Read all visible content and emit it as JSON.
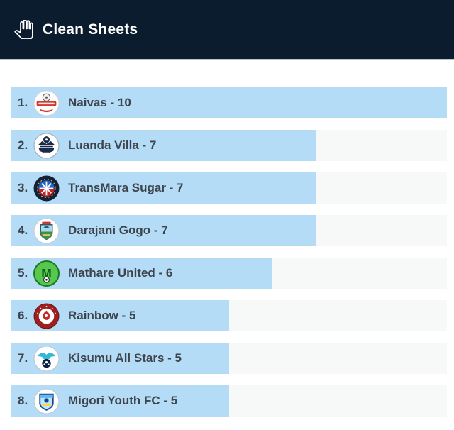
{
  "header": {
    "title": "Clean Sheets",
    "icon": "hand-icon",
    "background_color": "#0b1c2e",
    "text_color": "#ffffff"
  },
  "colors": {
    "bar_fill": "#b5dcf7",
    "bar_track": "#f7f8f8",
    "label_text": "#3d444c"
  },
  "chart_data": {
    "type": "bar",
    "orientation": "horizontal",
    "title": "Clean Sheets",
    "categories": [
      "Naivas",
      "Luanda Villa",
      "TransMara Sugar",
      "Darajani Gogo",
      "Mathare United",
      "Rainbow",
      "Kisumu All Stars",
      "Migori Youth FC"
    ],
    "values": [
      10,
      7,
      7,
      7,
      6,
      5,
      5,
      5
    ],
    "xlim": [
      0,
      10
    ],
    "grid": false,
    "legend": false,
    "bar_color": "#b5dcf7",
    "track_color": "#f7f8f8"
  },
  "rows": [
    {
      "rank": "1.",
      "team": "Naivas",
      "value": 10,
      "label": "Naivas - 10",
      "logo": "naivas-logo"
    },
    {
      "rank": "2.",
      "team": "Luanda Villa",
      "value": 7,
      "label": "Luanda Villa - 7",
      "logo": "luanda-villa-logo"
    },
    {
      "rank": "3.",
      "team": "TransMara Sugar",
      "value": 7,
      "label": "TransMara Sugar - 7",
      "logo": "transmara-sugar-logo"
    },
    {
      "rank": "4.",
      "team": "Darajani Gogo",
      "value": 7,
      "label": "Darajani Gogo - 7",
      "logo": "darajani-gogo-logo"
    },
    {
      "rank": "5.",
      "team": "Mathare United",
      "value": 6,
      "label": "Mathare United - 6",
      "logo": "mathare-united-logo"
    },
    {
      "rank": "6.",
      "team": "Rainbow",
      "value": 5,
      "label": "Rainbow - 5",
      "logo": "rainbow-logo"
    },
    {
      "rank": "7.",
      "team": "Kisumu All Stars",
      "value": 5,
      "label": "Kisumu All Stars - 5",
      "logo": "kisumu-all-stars-logo"
    },
    {
      "rank": "8.",
      "team": "Migori Youth FC",
      "value": 5,
      "label": "Migori Youth FC - 5",
      "logo": "migori-youth-fc-logo"
    }
  ]
}
